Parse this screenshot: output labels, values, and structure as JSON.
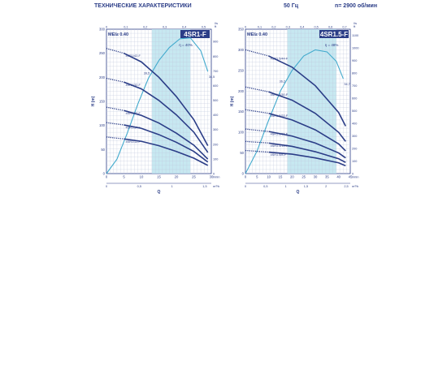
{
  "header": {
    "title": "ТЕХНИЧЕСКИЕ ХАРАКТЕРИСТИКИ",
    "frequency": "50 Гц",
    "speed": "n= 2900 об/мин"
  },
  "colors": {
    "curve": "#2b3d87",
    "band": "#b9e2ee",
    "efficiency": "#42aacd",
    "label_box": "#2b3d87"
  },
  "chart_data": [
    {
      "type": "line",
      "title": "4SR1-F",
      "mei_label": "MEI≥ 0.40",
      "ylabel": "H (m)",
      "xlabel": "Q",
      "x_unit_main": "l/min",
      "x_unit_top": "l/s",
      "x_unit_bottom": "m³/h",
      "right_unit": "ft",
      "efficiency_label": "η = 40%",
      "efficiency_left_value": "39,5",
      "efficiency_right_value": "34,5",
      "xlim": [
        0,
        30
      ],
      "ylim": [
        0,
        300
      ],
      "rightlim": [
        0,
        100
      ],
      "x_ticks": [
        0,
        5,
        10,
        15,
        20,
        25,
        30
      ],
      "y_ticks": [
        0,
        50,
        100,
        150,
        200,
        250,
        300
      ],
      "right_ticks": [
        0,
        100,
        200,
        300,
        400,
        500,
        600,
        700,
        800,
        900,
        1000
      ],
      "top_ticks": [
        "0",
        "0,1",
        "0,2",
        "0,3",
        "0,4",
        "0,5"
      ],
      "bottom_ticks": [
        "0",
        "0,5",
        "1",
        "1,5"
      ],
      "band": [
        13,
        24
      ],
      "efficiency_curve": [
        [
          0,
          0
        ],
        [
          3,
          30
        ],
        [
          6,
          85
        ],
        [
          9,
          145
        ],
        [
          12,
          198
        ],
        [
          15,
          235
        ],
        [
          18,
          262
        ],
        [
          21,
          280
        ],
        [
          24,
          282
        ],
        [
          27,
          255
        ],
        [
          29,
          212
        ]
      ],
      "series": [
        {
          "name": "4SR1/42-F",
          "x": [
            0,
            5,
            10,
            15,
            20,
            25,
            29
          ],
          "y": [
            260,
            250,
            232,
            200,
            160,
            112,
            58
          ]
        },
        {
          "name": "4SR1/32-F",
          "x": [
            0,
            5,
            10,
            15,
            20,
            25,
            29
          ],
          "y": [
            198,
            190,
            176,
            152,
            122,
            86,
            44
          ]
        },
        {
          "name": "4SR1/22-F",
          "x": [
            0,
            5,
            10,
            15,
            20,
            25,
            29
          ],
          "y": [
            138,
            131,
            121,
            105,
            84,
            59,
            30
          ]
        },
        {
          "name": "4SR1/17-F",
          "x": [
            0,
            5,
            10,
            15,
            20,
            25,
            29
          ],
          "y": [
            106,
            101,
            94,
            81,
            65,
            46,
            24
          ]
        },
        {
          "name": "4SR1/12-F",
          "x": [
            0,
            5,
            10,
            15,
            20,
            25,
            29
          ],
          "y": [
            76,
            72,
            67,
            58,
            46,
            32,
            17
          ]
        }
      ]
    },
    {
      "type": "line",
      "title": "4SR1.5-F",
      "mei_label": "MEI≥ 0.40",
      "ylabel": "H (m)",
      "xlabel": "Q",
      "x_unit_main": "l/min",
      "x_unit_top": "l/s",
      "x_unit_bottom": "m³/h",
      "right_unit": "ft",
      "efficiency_label": "η = 48%",
      "efficiency_left_value": "36,2",
      "efficiency_right_value": "34,7",
      "xlim": [
        0,
        45
      ],
      "ylim": [
        0,
        350
      ],
      "rightlim": [
        0,
        115
      ],
      "x_ticks": [
        0,
        5,
        10,
        15,
        20,
        25,
        30,
        35,
        40,
        45
      ],
      "y_ticks": [
        0,
        50,
        100,
        150,
        200,
        250,
        300,
        350
      ],
      "right_ticks": [
        0,
        100,
        200,
        300,
        400,
        500,
        600,
        700,
        800,
        900,
        1000,
        1100
      ],
      "top_ticks": [
        "0",
        "0,1",
        "0,2",
        "0,3",
        "0,4",
        "0,5",
        "0,6",
        "0,7"
      ],
      "bottom_ticks": [
        "0",
        "0,5",
        "1",
        "1,5",
        "2",
        "2,5"
      ],
      "band": [
        18,
        39
      ],
      "efficiency_curve": [
        [
          0,
          0
        ],
        [
          5,
          55
        ],
        [
          10,
          130
        ],
        [
          15,
          200
        ],
        [
          20,
          250
        ],
        [
          25,
          285
        ],
        [
          30,
          300
        ],
        [
          35,
          295
        ],
        [
          39,
          272
        ],
        [
          42,
          230
        ]
      ],
      "series": [
        {
          "name": "4SR1.5/44-F",
          "x": [
            0,
            10,
            20,
            30,
            40,
            43
          ],
          "y": [
            300,
            285,
            258,
            213,
            148,
            115
          ]
        },
        {
          "name": "4SR1.5/30-F",
          "x": [
            0,
            10,
            20,
            30,
            40,
            43
          ],
          "y": [
            210,
            198,
            178,
            146,
            100,
            78
          ]
        },
        {
          "name": "4SR1.5/22-F",
          "x": [
            0,
            10,
            20,
            30,
            40,
            43
          ],
          "y": [
            155,
            146,
            130,
            106,
            72,
            55
          ]
        },
        {
          "name": "4SR1.5/15-F",
          "x": [
            0,
            10,
            20,
            30,
            40,
            43
          ],
          "y": [
            108,
            102,
            91,
            74,
            50,
            38
          ]
        },
        {
          "name": "4SR1.5/11-F",
          "x": [
            0,
            10,
            20,
            30,
            40,
            43
          ],
          "y": [
            78,
            74,
            66,
            53,
            36,
            27
          ]
        },
        {
          "name": "4SR1.5/8-F",
          "x": [
            0,
            10,
            20,
            30,
            40,
            43
          ],
          "y": [
            56,
            52,
            47,
            38,
            26,
            19
          ]
        }
      ]
    }
  ]
}
